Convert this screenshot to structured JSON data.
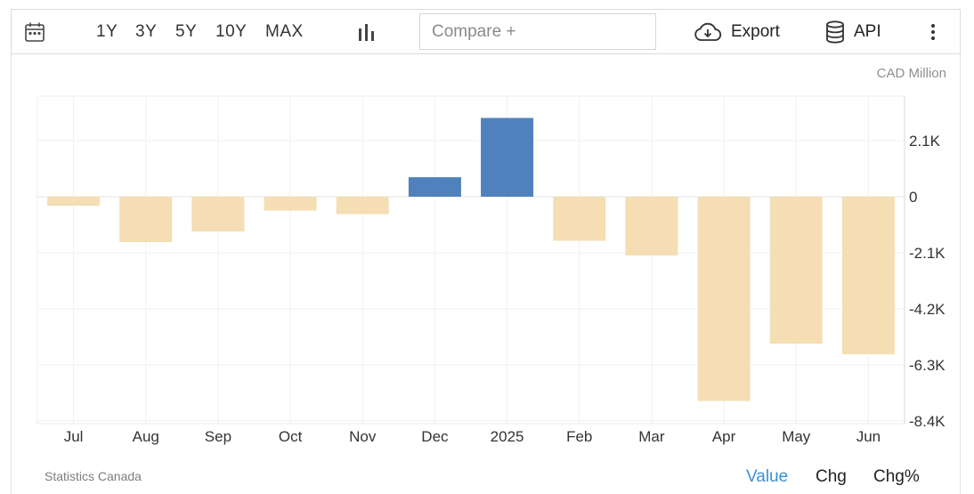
{
  "toolbar": {
    "ranges": [
      "1Y",
      "3Y",
      "5Y",
      "10Y",
      "MAX"
    ],
    "compare_placeholder": "Compare +",
    "export_label": "Export",
    "api_label": "API"
  },
  "footer": {
    "source": "Statistics Canada",
    "modes": [
      "Value",
      "Chg",
      "Chg%"
    ],
    "active_mode": "Value"
  },
  "colors": {
    "positive": "#4f81bd",
    "negative": "#f5deb3",
    "active_mode": "#3b8fd3"
  },
  "chart_data": {
    "type": "bar",
    "unit_label": "CAD Million",
    "categories": [
      "Jul",
      "Aug",
      "Sep",
      "Oct",
      "Nov",
      "Dec",
      "2025",
      "Feb",
      "Mar",
      "Apr",
      "May",
      "Jun"
    ],
    "values": [
      -340,
      -1700,
      -1300,
      -520,
      -650,
      730,
      2950,
      -1650,
      -2200,
      -7650,
      -5500,
      -5900
    ],
    "y_ticks": [
      "2.1K",
      "0",
      "-2.1K",
      "-4.2K",
      "-6.3K",
      "-8.4K"
    ],
    "y_tick_values": [
      2100,
      0,
      -2100,
      -4200,
      -6300,
      -8400
    ],
    "ylim": [
      -8400,
      3700
    ],
    "grid": true
  }
}
